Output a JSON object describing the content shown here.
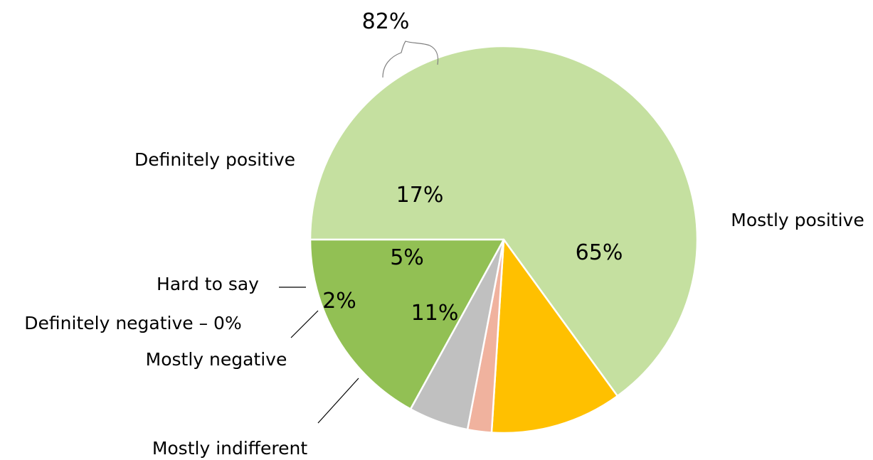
{
  "chart_data": {
    "type": "pie",
    "start_angle_deg": 180,
    "direction": "clockwise",
    "slices": [
      {
        "name": "Mostly positive",
        "value": 65,
        "label": "65%",
        "category_label": "Mostly positive",
        "color": "#c5e0a0"
      },
      {
        "name": "Mostly indifferent",
        "value": 11,
        "label": "11%",
        "category_label": "Mostly indifferent",
        "color": "#ffc000"
      },
      {
        "name": "Mostly negative",
        "value": 2,
        "label": "2%",
        "category_label": "Mostly negative",
        "color": "#f0b29e"
      },
      {
        "name": "Definitely negative",
        "value": 0,
        "label": "",
        "category_label": "Definitely negative – 0%",
        "color": "#c0504d"
      },
      {
        "name": "Hard to say",
        "value": 5,
        "label": "5%",
        "category_label": "Hard to say",
        "color": "#c0c0c0"
      },
      {
        "name": "Definitely positive",
        "value": 17,
        "label": "17%",
        "category_label": "Definitely positive",
        "color": "#92c054"
      }
    ],
    "annotations": [
      {
        "text": "82%",
        "spans": [
          "Definitely positive",
          "Mostly positive"
        ]
      }
    ]
  }
}
